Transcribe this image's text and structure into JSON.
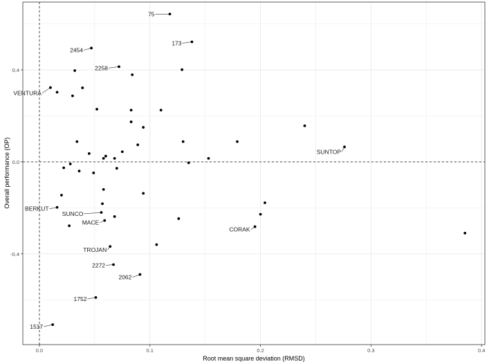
{
  "chart_data": {
    "type": "scatter",
    "title": "",
    "xlabel": "Root mean square deviation (RMSD)",
    "ylabel": "Overall performance (OP)",
    "xlim": [
      -0.015,
      0.403
    ],
    "ylim": [
      -0.795,
      0.695
    ],
    "x_ticks": [
      0.0,
      0.1,
      0.2,
      0.3,
      0.4
    ],
    "x_tick_labels": [
      "0.0",
      "0.1",
      "0.2",
      "0.3",
      "0.4"
    ],
    "y_ticks": [
      -0.4,
      0.0,
      0.4
    ],
    "y_tick_labels": [
      "-0.4",
      "0.0",
      "0.4"
    ],
    "grid": true,
    "reference_lines": {
      "x": 0,
      "y": 0,
      "style": "dashed"
    },
    "colors": {
      "point": "#000000",
      "grid": "#ebebeb",
      "panel_border": "#333333",
      "reference_line": "#333333",
      "label_line": "#333333"
    },
    "points": [
      {
        "x": 0.118,
        "y": 0.643,
        "label": "75"
      },
      {
        "x": 0.138,
        "y": 0.522,
        "label": "173"
      },
      {
        "x": 0.047,
        "y": 0.495,
        "label": "2454"
      },
      {
        "x": 0.072,
        "y": 0.414,
        "label": "2258"
      },
      {
        "x": 0.01,
        "y": 0.323,
        "label": "VENTURA"
      },
      {
        "x": 0.276,
        "y": 0.065,
        "label": "SUNTOP"
      },
      {
        "x": 0.016,
        "y": -0.198,
        "label": "BERKUT"
      },
      {
        "x": 0.056,
        "y": -0.22,
        "label": "SUNCO"
      },
      {
        "x": 0.059,
        "y": -0.255,
        "label": "MACE"
      },
      {
        "x": 0.195,
        "y": -0.282,
        "label": "CORAK"
      },
      {
        "x": 0.064,
        "y": -0.368,
        "label": "TROJAN"
      },
      {
        "x": 0.067,
        "y": -0.447,
        "label": "2272"
      },
      {
        "x": 0.091,
        "y": -0.49,
        "label": "2062"
      },
      {
        "x": 0.051,
        "y": -0.59,
        "label": "1752"
      },
      {
        "x": 0.012,
        "y": -0.708,
        "label": "1517"
      },
      {
        "x": 0.016,
        "y": 0.303
      },
      {
        "x": 0.032,
        "y": 0.397
      },
      {
        "x": 0.039,
        "y": 0.322
      },
      {
        "x": 0.03,
        "y": 0.287
      },
      {
        "x": 0.084,
        "y": 0.379
      },
      {
        "x": 0.129,
        "y": 0.401
      },
      {
        "x": 0.052,
        "y": 0.229
      },
      {
        "x": 0.083,
        "y": 0.225
      },
      {
        "x": 0.11,
        "y": 0.225
      },
      {
        "x": 0.083,
        "y": 0.174
      },
      {
        "x": 0.094,
        "y": 0.15
      },
      {
        "x": 0.24,
        "y": 0.157
      },
      {
        "x": 0.034,
        "y": 0.088
      },
      {
        "x": 0.13,
        "y": 0.088
      },
      {
        "x": 0.179,
        "y": 0.088
      },
      {
        "x": 0.089,
        "y": 0.074
      },
      {
        "x": 0.075,
        "y": 0.044
      },
      {
        "x": 0.045,
        "y": 0.036
      },
      {
        "x": 0.06,
        "y": 0.025
      },
      {
        "x": 0.058,
        "y": 0.015
      },
      {
        "x": 0.068,
        "y": 0.015
      },
      {
        "x": 0.153,
        "y": 0.015
      },
      {
        "x": 0.135,
        "y": -0.004
      },
      {
        "x": 0.028,
        "y": -0.009
      },
      {
        "x": 0.022,
        "y": -0.026
      },
      {
        "x": 0.07,
        "y": -0.028
      },
      {
        "x": 0.036,
        "y": -0.04
      },
      {
        "x": 0.049,
        "y": -0.048
      },
      {
        "x": 0.058,
        "y": -0.12
      },
      {
        "x": 0.02,
        "y": -0.145
      },
      {
        "x": 0.094,
        "y": -0.137
      },
      {
        "x": 0.057,
        "y": -0.182
      },
      {
        "x": 0.204,
        "y": -0.178
      },
      {
        "x": 0.2,
        "y": -0.228
      },
      {
        "x": 0.068,
        "y": -0.238
      },
      {
        "x": 0.126,
        "y": -0.247
      },
      {
        "x": 0.027,
        "y": -0.278
      },
      {
        "x": 0.106,
        "y": -0.36
      },
      {
        "x": 0.385,
        "y": -0.31
      }
    ]
  }
}
